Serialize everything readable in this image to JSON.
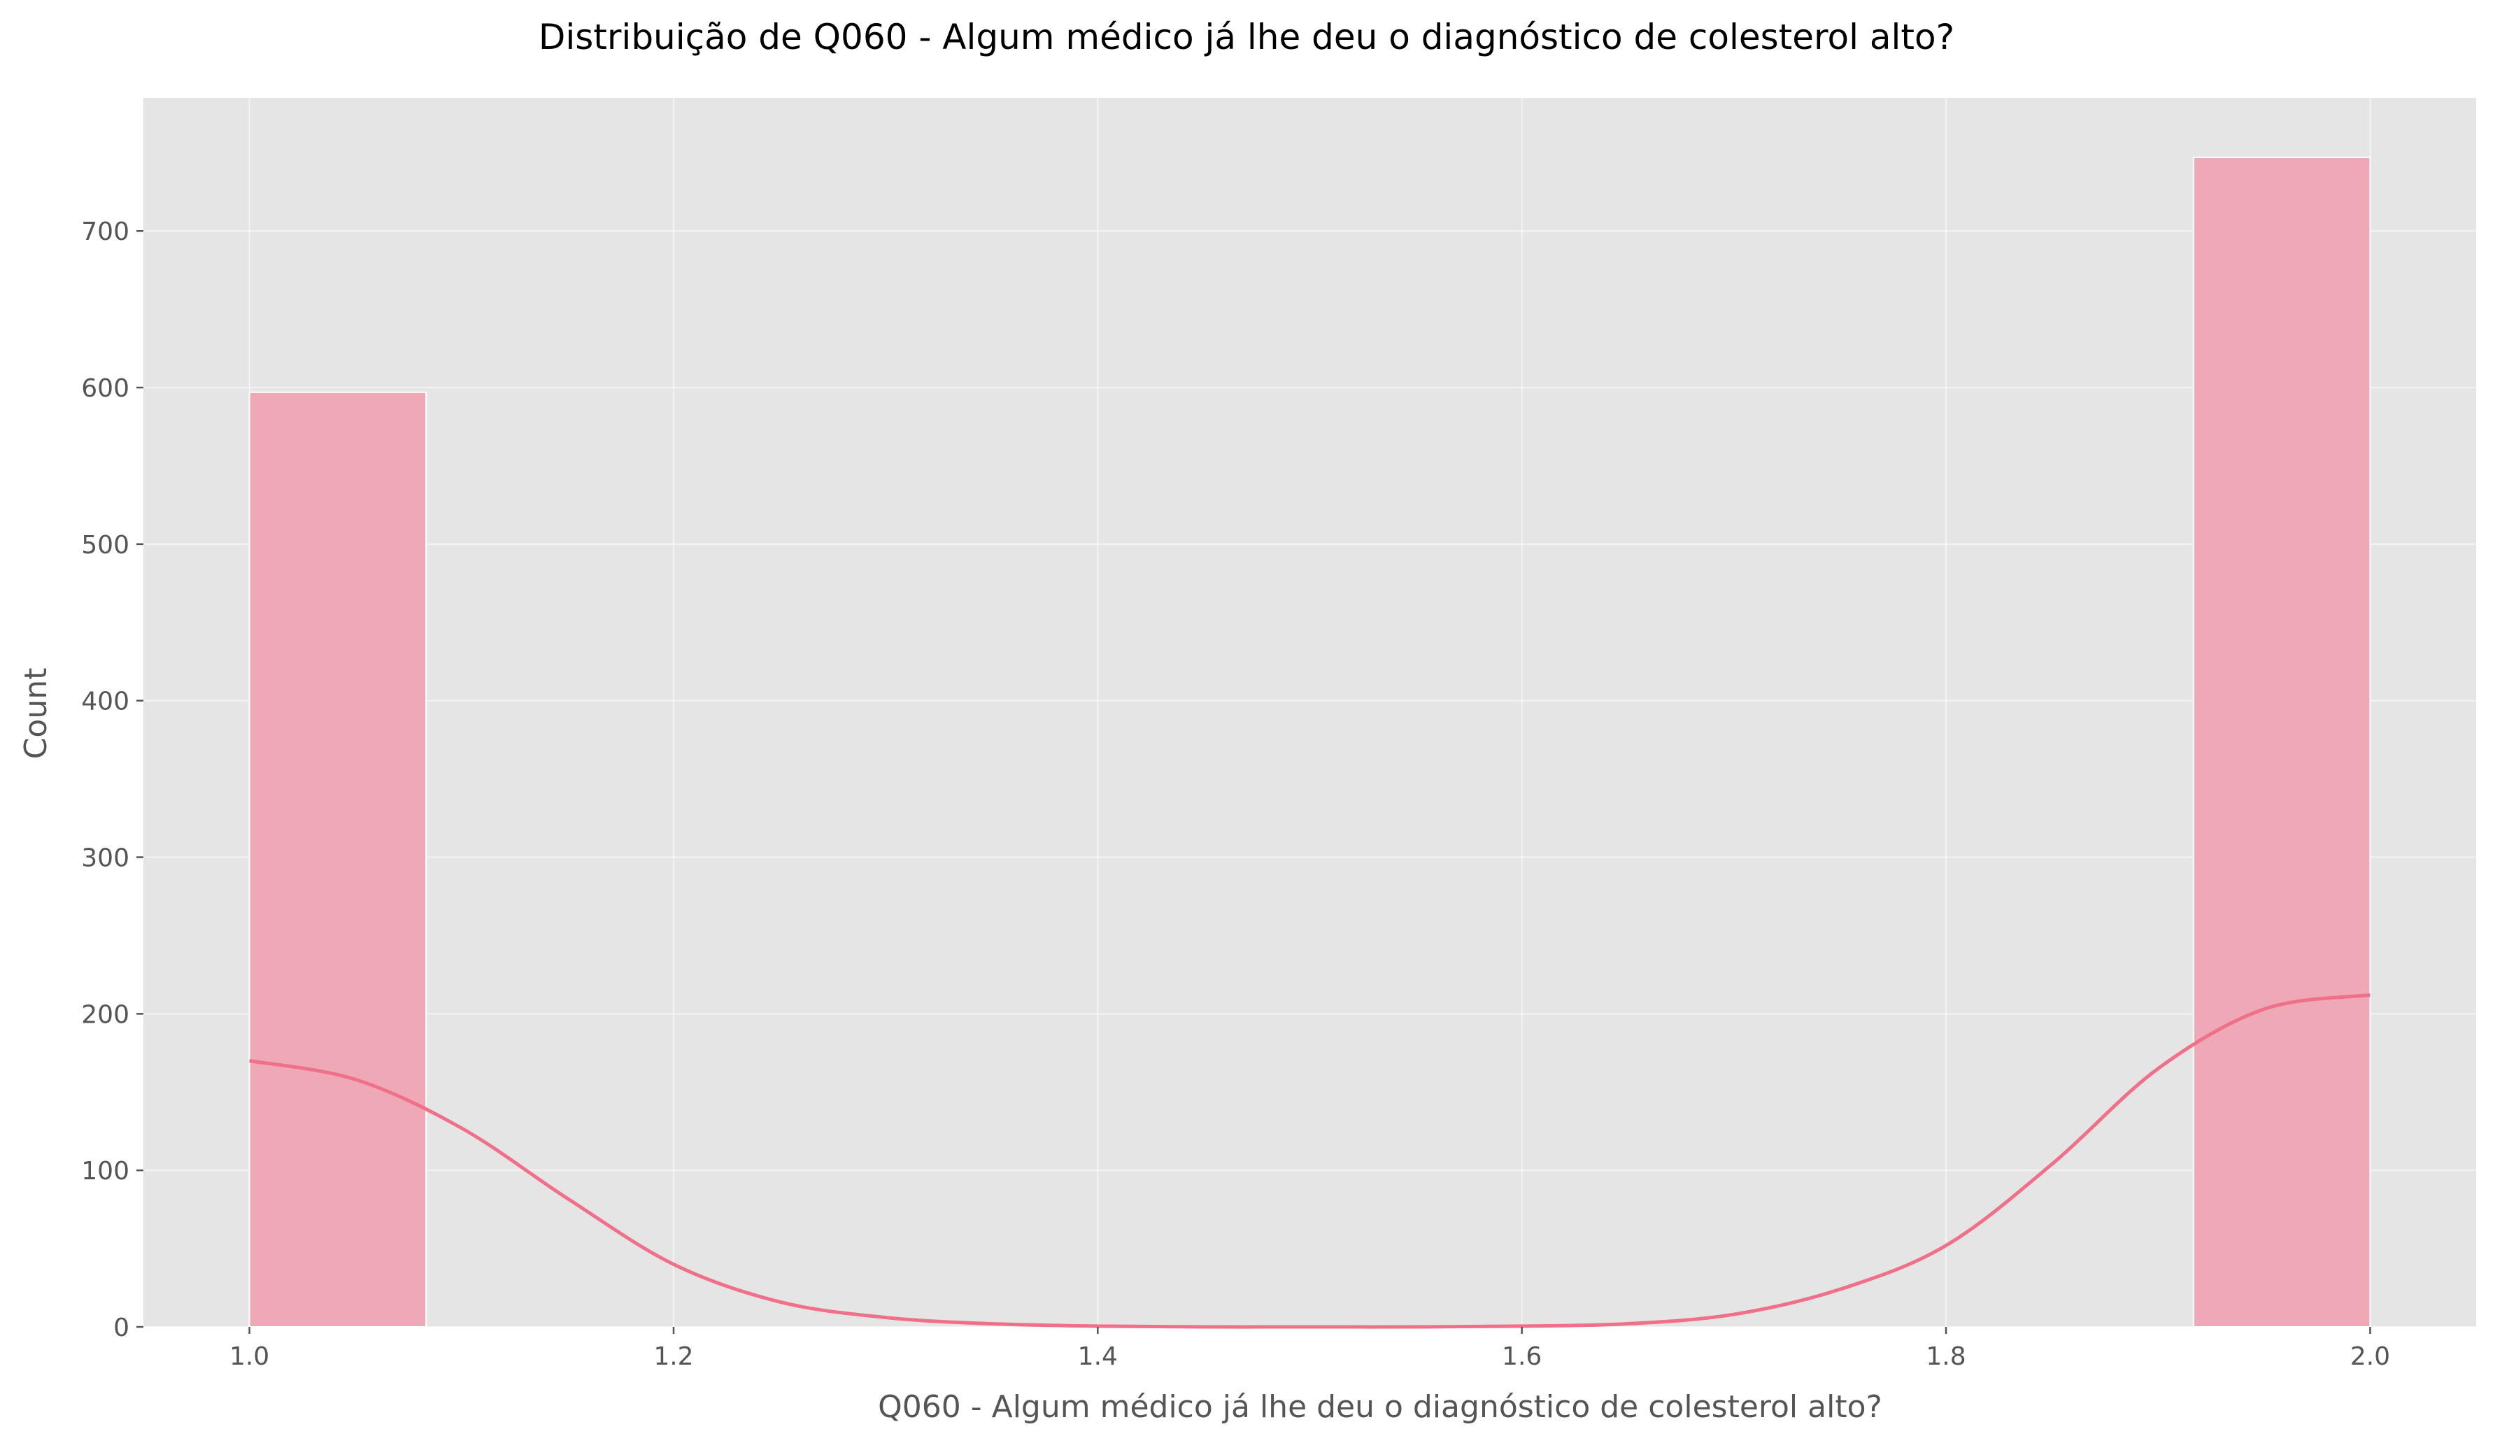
{
  "chart_data": {
    "type": "bar",
    "title": "Distribuição de Q060 - Algum médico já lhe deu o diagnóstico de colesterol alto?",
    "xlabel": "Q060 - Algum médico já lhe deu o diagnóstico de colesterol alto?",
    "ylabel": "Count",
    "xlim": [
      0.95,
      2.05
    ],
    "ylim": [
      0,
      785
    ],
    "xticks": [
      1.0,
      1.2,
      1.4,
      1.6,
      1.8,
      2.0
    ],
    "xtick_labels": [
      "1.0",
      "1.2",
      "1.4",
      "1.6",
      "1.8",
      "2.0"
    ],
    "yticks": [
      0,
      100,
      200,
      300,
      400,
      500,
      600,
      700
    ],
    "ytick_labels": [
      "0",
      "100",
      "200",
      "300",
      "400",
      "500",
      "600",
      "700"
    ],
    "grid": true,
    "bars": [
      {
        "x0": 1.0,
        "x1": 1.0833,
        "count": 597
      },
      {
        "x0": 1.9167,
        "x1": 2.0,
        "count": 747
      }
    ],
    "kde": {
      "x": [
        1.0,
        1.05,
        1.1,
        1.15,
        1.2,
        1.25,
        1.3,
        1.35,
        1.4,
        1.45,
        1.5,
        1.55,
        1.6,
        1.65,
        1.7,
        1.75,
        1.8,
        1.85,
        1.9,
        1.95,
        2.0
      ],
      "y": [
        170,
        158,
        127,
        82,
        40,
        16,
        6,
        2,
        0.5,
        0,
        0,
        0,
        0.5,
        2,
        8,
        24,
        52,
        104,
        165,
        203,
        212
      ]
    },
    "colors": {
      "bar_fill": "#eea8b6",
      "bar_edge": "#ffffff",
      "kde_line": "#f0708a",
      "plot_background": "#e5e5e5",
      "grid": "#ffffff"
    }
  }
}
